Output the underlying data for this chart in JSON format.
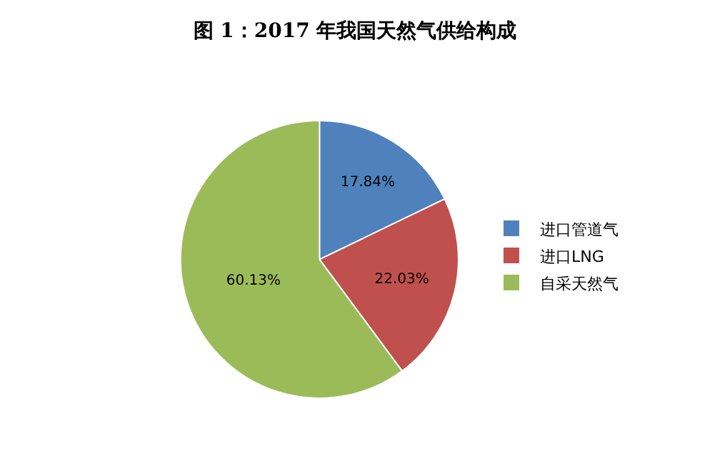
{
  "chart_data": {
    "type": "pie",
    "title": "图 1：2017 年我国天然气供给构成",
    "categories": [
      "进口管道气",
      "进口LNG",
      "自采天然气"
    ],
    "values": [
      17.84,
      22.03,
      60.13
    ],
    "colors": [
      "#4f81bd",
      "#c0504d",
      "#9bbb59"
    ],
    "value_labels": [
      "17.84%",
      "22.03%",
      "60.13%"
    ],
    "legend": "right"
  }
}
